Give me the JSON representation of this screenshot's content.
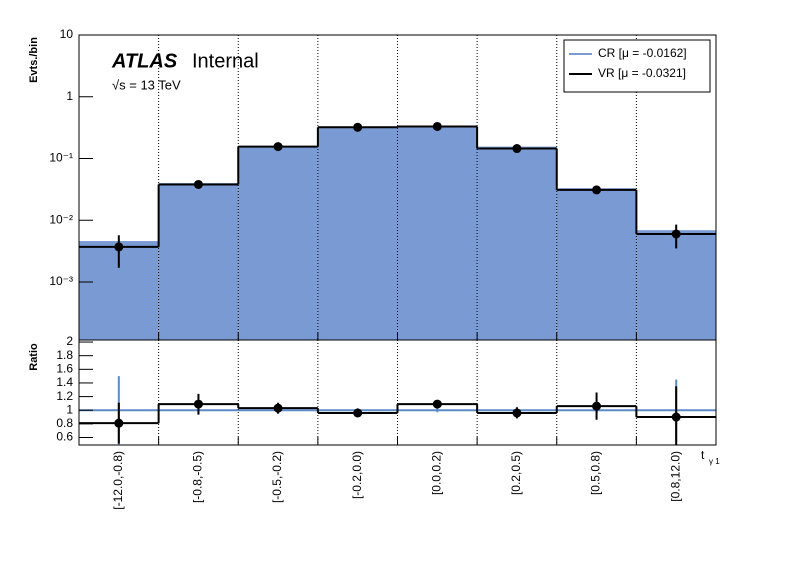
{
  "chart_data": [
    {
      "type": "step",
      "log_y": true,
      "y_label": "Evts./bin",
      "xgrid": true,
      "legend": "top-right",
      "experiment": "ATLAS",
      "status": "Internal",
      "energy": "√s = 13 TeV",
      "ylim": [
        0.000115,
        10
      ],
      "yticks": [
        10,
        1,
        {
          "value": 0.1,
          "label": "10⁻¹"
        },
        {
          "value": 0.01,
          "label": "10⁻²"
        },
        {
          "value": 0.001,
          "label": "10⁻³"
        }
      ],
      "series": [
        {
          "name": "CR [μ = -0.0162]",
          "color": "#7a9ad3",
          "filled": true,
          "markers": false,
          "values": [
            0.0046,
            0.04,
            0.16,
            0.33,
            0.34,
            0.156,
            0.033,
            0.0069
          ]
        },
        {
          "name": "VR [μ = -0.0321]",
          "color": "#000000",
          "filled": false,
          "markers": true,
          "values": [
            0.0037,
            0.038,
            0.156,
            0.32,
            0.33,
            0.145,
            0.031,
            0.006
          ],
          "errors": [
            0.002,
            0.002,
            0.005,
            0.01,
            0.01,
            0.006,
            0.002,
            0.0025
          ]
        }
      ]
    },
    {
      "type": "step",
      "log_y": false,
      "y_label": "Ratio",
      "xgrid": true,
      "x_label": "t",
      "x_label_sub": "γ 1",
      "categories": [
        "[-12.0,-0.8)",
        "[-0.8,-0.5)",
        "[-0.5,-0.2)",
        "[-0.2,0.0)",
        "[0.0,0.2)",
        "[0.2,0.5)",
        "[0.5,0.8)",
        "[0.8,12.0)"
      ],
      "ylim": [
        0.49,
        2.03
      ],
      "yticks": [
        0.6,
        0.8,
        1,
        1.2,
        1.4,
        1.6,
        1.8,
        2
      ],
      "series": [
        {
          "color": "#5b8ac7",
          "filled": false,
          "markers": false,
          "values": [
            1,
            1,
            1,
            1,
            1,
            1,
            1,
            1
          ],
          "errors": [
            0.5,
            0.07,
            0.05,
            0.03,
            0.03,
            0.05,
            0.06,
            0.45
          ]
        },
        {
          "color": "#000000",
          "filled": false,
          "markers": true,
          "values": [
            0.81,
            1.09,
            1.03,
            0.96,
            1.09,
            0.96,
            1.06,
            0.9
          ],
          "errors": [
            0.3,
            0.15,
            0.08,
            0.05,
            0.05,
            0.08,
            0.2,
            0.45
          ]
        }
      ]
    }
  ]
}
